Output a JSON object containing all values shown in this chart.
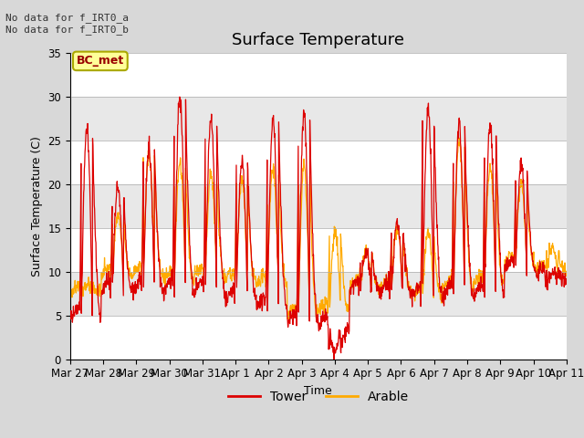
{
  "title": "Surface Temperature",
  "ylabel": "Surface Temperature (C)",
  "xlabel": "Time",
  "ylim": [
    0,
    35
  ],
  "yticks": [
    0,
    5,
    10,
    15,
    20,
    25,
    30,
    35
  ],
  "x_labels": [
    "Mar 27",
    "Mar 28",
    "Mar 29",
    "Mar 30",
    "Mar 31",
    "Apr 1",
    "Apr 2",
    "Apr 3",
    "Apr 4",
    "Apr 5",
    "Apr 6",
    "Apr 7",
    "Apr 8",
    "Apr 9",
    "Apr 10",
    "Apr 11"
  ],
  "annotation_text": "No data for f_IRT0_a\nNo data for f_IRT0_b",
  "legend_box_label": "BC_met",
  "tower_color": "#dd0000",
  "arable_color": "#ffaa00",
  "background_color": "#d8d8d8",
  "plot_bg_color": "#e8e8e8",
  "stripe_color": "#ffffff",
  "title_fontsize": 13,
  "label_fontsize": 9,
  "tick_fontsize": 8.5,
  "figsize": [
    6.4,
    4.8
  ],
  "dpi": 100
}
